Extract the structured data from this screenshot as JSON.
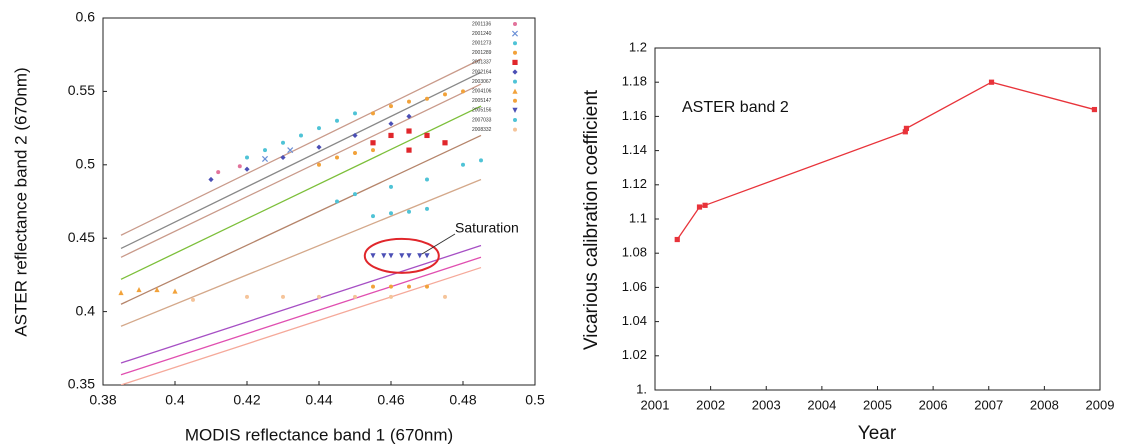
{
  "chart_data": [
    {
      "type": "scatter",
      "xlabel": "MODIS reflectance band 1 (670nm)",
      "ylabel": "ASTER reflectance band 2 (670nm)",
      "annotation": "Saturation",
      "xlim": [
        0.38,
        0.5
      ],
      "xticks": [
        0.38,
        0.4,
        0.42,
        0.44,
        0.46,
        0.48,
        0.5
      ],
      "ylim": [
        0.35,
        0.6
      ],
      "yticks": [
        0.35,
        0.4,
        0.45,
        0.5,
        0.55,
        0.6
      ],
      "series": [
        {
          "name": "2001136",
          "color": "#e2739b",
          "marker": "circle",
          "x": [
            0.412,
            0.418
          ],
          "y": [
            0.495,
            0.499
          ]
        },
        {
          "name": "2001240",
          "color": "#6a8fd6",
          "marker": "x",
          "x": [
            0.425,
            0.432
          ],
          "y": [
            0.504,
            0.51
          ]
        },
        {
          "name": "2001273",
          "color": "#4fc3d6",
          "marker": "circle",
          "x": [
            0.42,
            0.425,
            0.43,
            0.435,
            0.44,
            0.445,
            0.45
          ],
          "y": [
            0.505,
            0.51,
            0.515,
            0.52,
            0.525,
            0.53,
            0.535
          ]
        },
        {
          "name": "2001289",
          "color": "#f2a23a",
          "marker": "circle",
          "x": [
            0.455,
            0.46,
            0.465,
            0.47,
            0.475,
            0.48
          ],
          "y": [
            0.535,
            0.54,
            0.543,
            0.545,
            0.548,
            0.55
          ]
        },
        {
          "name": "2001337",
          "color": "#e0262b",
          "marker": "square",
          "x": [
            0.455,
            0.46,
            0.465,
            0.47,
            0.475,
            0.465
          ],
          "y": [
            0.515,
            0.52,
            0.523,
            0.52,
            0.515,
            0.51
          ]
        },
        {
          "name": "2002164",
          "color": "#4b4fb5",
          "marker": "diamond",
          "x": [
            0.41,
            0.42,
            0.43,
            0.44,
            0.45,
            0.46,
            0.465
          ],
          "y": [
            0.49,
            0.497,
            0.505,
            0.512,
            0.52,
            0.528,
            0.533
          ]
        },
        {
          "name": "2003067",
          "color": "#4fc3d6",
          "marker": "circle",
          "x": [
            0.445,
            0.45,
            0.46,
            0.47,
            0.48,
            0.485
          ],
          "y": [
            0.475,
            0.48,
            0.485,
            0.49,
            0.5,
            0.503
          ]
        },
        {
          "name": "2004106",
          "color": "#f2a23a",
          "marker": "triangle",
          "x": [
            0.385,
            0.39,
            0.395,
            0.4
          ],
          "y": [
            0.413,
            0.415,
            0.415,
            0.414
          ]
        },
        {
          "name": "2005147",
          "color": "#f2a23a",
          "marker": "circle",
          "x": [
            0.44,
            0.445,
            0.45,
            0.455,
            0.455,
            0.46,
            0.465,
            0.47
          ],
          "y": [
            0.5,
            0.505,
            0.508,
            0.51,
            0.417,
            0.417,
            0.417,
            0.417
          ]
        },
        {
          "name": "2005156",
          "color": "#4b4fb5",
          "marker": "triangle-down",
          "x": [
            0.455,
            0.458,
            0.46,
            0.463,
            0.465,
            0.468,
            0.47
          ],
          "y": [
            0.438,
            0.438,
            0.438,
            0.438,
            0.438,
            0.438,
            0.438
          ]
        },
        {
          "name": "2007033",
          "color": "#4fc3d6",
          "marker": "circle",
          "x": [
            0.455,
            0.46,
            0.465,
            0.47
          ],
          "y": [
            0.465,
            0.467,
            0.468,
            0.47
          ]
        },
        {
          "name": "2008332",
          "color": "#f5c49a",
          "marker": "circle",
          "x": [
            0.405,
            0.42,
            0.43,
            0.44,
            0.45,
            0.46,
            0.475
          ],
          "y": [
            0.408,
            0.41,
            0.41,
            0.41,
            0.41,
            0.41,
            0.41
          ]
        }
      ],
      "fit_lines": [
        {
          "color": "#c99a8a",
          "x": [
            0.385,
            0.485
          ],
          "y": [
            0.452,
            0.572
          ]
        },
        {
          "color": "#888888",
          "x": [
            0.385,
            0.485
          ],
          "y": [
            0.443,
            0.563
          ]
        },
        {
          "color": "#c99a8a",
          "x": [
            0.385,
            0.485
          ],
          "y": [
            0.437,
            0.555
          ]
        },
        {
          "color": "#7cbf3a",
          "x": [
            0.385,
            0.485
          ],
          "y": [
            0.422,
            0.54
          ]
        },
        {
          "color": "#b5846a",
          "x": [
            0.385,
            0.485
          ],
          "y": [
            0.405,
            0.52
          ]
        },
        {
          "color": "#d4a88a",
          "x": [
            0.385,
            0.485
          ],
          "y": [
            0.39,
            0.49
          ]
        },
        {
          "color": "#a64fc4",
          "x": [
            0.385,
            0.485
          ],
          "y": [
            0.365,
            0.445
          ]
        },
        {
          "color": "#e04fb0",
          "x": [
            0.385,
            0.485
          ],
          "y": [
            0.357,
            0.437
          ]
        },
        {
          "color": "#f5a99a",
          "x": [
            0.385,
            0.485
          ],
          "y": [
            0.35,
            0.43
          ]
        }
      ]
    },
    {
      "type": "line",
      "xlabel": "Year",
      "ylabel": "Vicarious calibration coefficient",
      "annotation": "ASTER band 2",
      "color": "#e8333a",
      "x": [
        2001.4,
        2001.8,
        2001.9,
        2005.5,
        2005.52,
        2007.05,
        2008.9
      ],
      "values": [
        1.088,
        1.107,
        1.108,
        1.151,
        1.153,
        1.18,
        1.164
      ],
      "xlim": [
        2001,
        2009
      ],
      "xticks": [
        2001,
        2002,
        2003,
        2004,
        2005,
        2006,
        2007,
        2008,
        2009
      ],
      "ylim": [
        1.0,
        1.2
      ],
      "yticks": [
        {
          "value": 1,
          "label": "1."
        },
        1.02,
        1.04,
        1.06,
        1.08,
        1.1,
        1.12,
        1.14,
        1.16,
        1.18,
        1.2
      ]
    }
  ]
}
